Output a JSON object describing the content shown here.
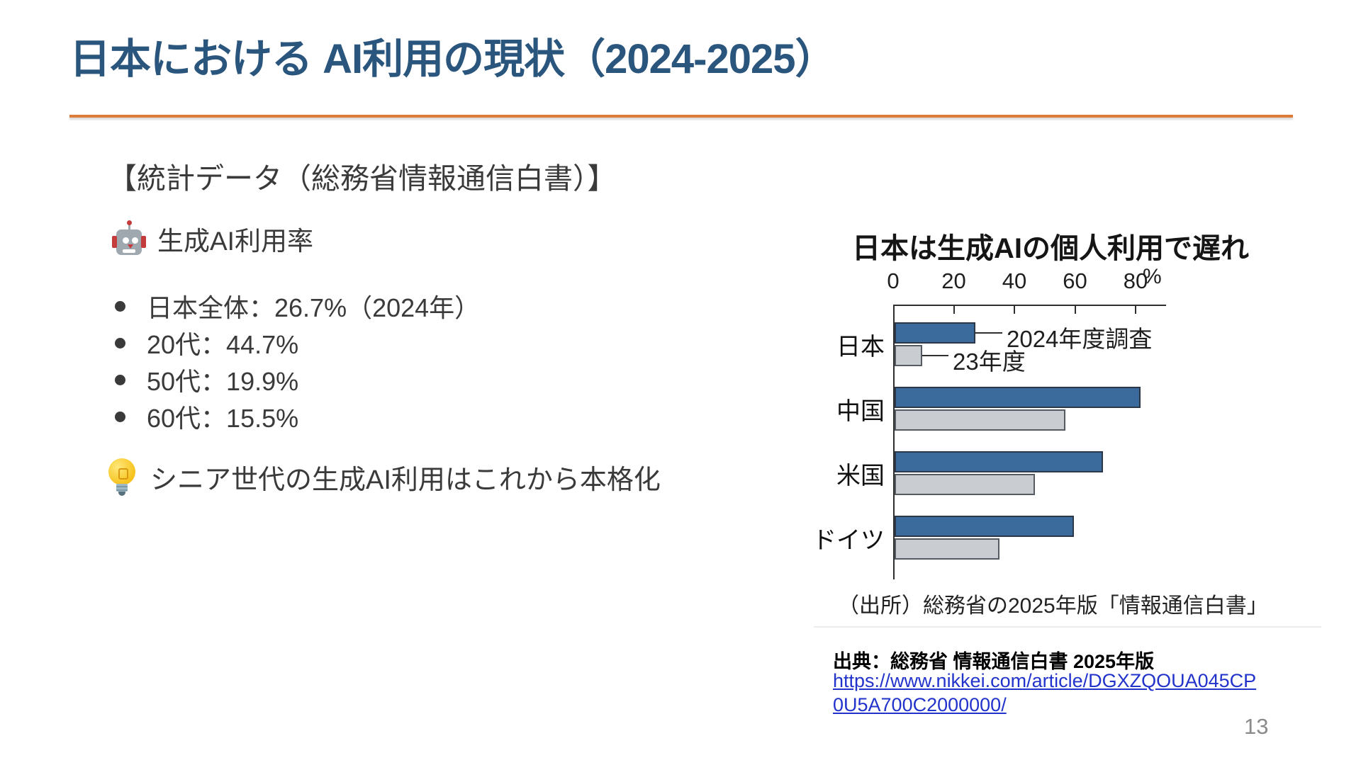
{
  "slide": {
    "title": "日本における AI利用の現状（2024-2025）",
    "page_number": "13"
  },
  "colors": {
    "title_blue": "#2A557D",
    "accent_rule_orange": "#DB7C3A",
    "body_text": "#3A3A3A",
    "link_blue": "#2233CC",
    "bar_2024_blue": "#3A6B9C",
    "bar_2023_gray": "#C9CDD1",
    "axis": "#2F2F2F"
  },
  "left_panel": {
    "heading": "【統計データ（総務省情報通信白書）】",
    "stat_header": {
      "icon": "robot-emoji",
      "label": "生成AI利用率"
    },
    "bullets": [
      "日本全体：26.7%（2024年）",
      "20代：44.7%",
      "50代：19.9%",
      "60代：15.5%"
    ],
    "callout": {
      "icon": "lightbulb-emoji",
      "label": "シニア世代の生成AI利用はこれから本格化"
    }
  },
  "chart_data": {
    "type": "bar",
    "orientation": "horizontal",
    "title": "日本は生成AIの個人利用で遅れ",
    "categories": [
      "日本",
      "中国",
      "米国",
      "ドイツ"
    ],
    "series": [
      {
        "name": "2024年度調査",
        "values": [
          26.7,
          81.2,
          68.8,
          59.2
        ],
        "color": "#3A6B9C",
        "edge_color": "#2C3848"
      },
      {
        "name": "23年度",
        "values": [
          9.1,
          56.3,
          46.3,
          34.6
        ],
        "color": "#C9CDD1",
        "edge_color": "#565B61"
      }
    ],
    "xlim": [
      0,
      88
    ],
    "ticks": [
      0,
      20,
      40,
      60,
      80
    ],
    "unit_label": "%",
    "grid": false,
    "legend_position": "annotations-on-first-row",
    "annotations": [
      "2024年度調査",
      "23年度"
    ],
    "source": "（出所）総務省の2025年版「情報通信白書」"
  },
  "citation": {
    "text": "出典：総務省 情報通信白書 2025年版",
    "link_line1": "https://www.nikkei.com/article/DGXZQOUA045CP",
    "link_line2": "0U5A700C2000000/"
  }
}
